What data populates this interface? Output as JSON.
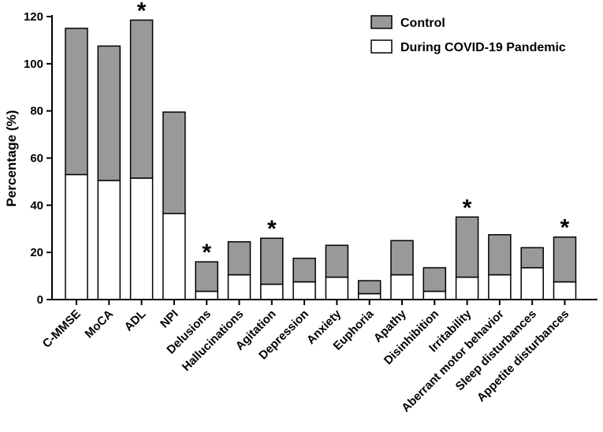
{
  "chart_data": {
    "type": "bar",
    "stacked": true,
    "title": "",
    "xlabel": "",
    "ylabel": "Percentage (%)",
    "ylim": [
      0,
      120
    ],
    "yticks": [
      0,
      20,
      40,
      60,
      80,
      100,
      120
    ],
    "grid": false,
    "legend_position": "top-right",
    "categories": [
      "C-MMSE",
      "MoCA",
      "ADL",
      "NPI",
      "Delusions",
      "Hallucinations",
      "Agitation",
      "Depression",
      "Anxiety",
      "Euphoria",
      "Apathy",
      "Disinhibition",
      "Irritability",
      "Aberrant motor behavior",
      "Sleep disturbances",
      "Appetite disturbances"
    ],
    "series": [
      {
        "name": "During COVID-19 Pandemic",
        "color": "#ffffff",
        "values": [
          53,
          50.5,
          51.5,
          36.5,
          3.5,
          10.5,
          6.5,
          7.5,
          9.5,
          2.5,
          10.5,
          3.5,
          9.5,
          10.5,
          13.5,
          7.5
        ]
      },
      {
        "name": "Control",
        "color": "#999999",
        "values": [
          62,
          57,
          67,
          43,
          12.5,
          14,
          19.5,
          10,
          13.5,
          5.5,
          14.5,
          10,
          25.5,
          17,
          8.5,
          19
        ]
      }
    ],
    "significance_marker": "*",
    "significant": [
      "ADL",
      "Delusions",
      "Agitation",
      "Irritability",
      "Appetite disturbances"
    ]
  }
}
